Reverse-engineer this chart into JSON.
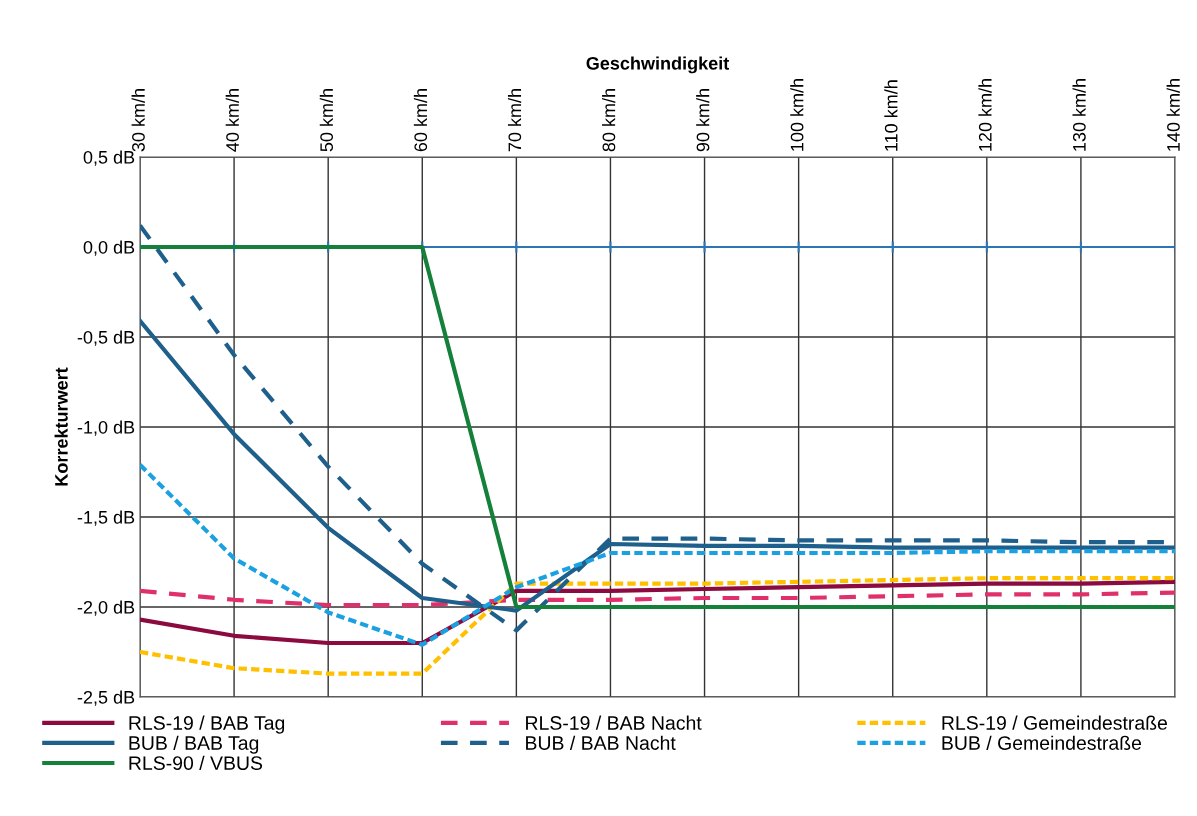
{
  "chart_data": {
    "type": "line",
    "xlabel": "Geschwindigkeit",
    "ylabel": "Korrekturwert",
    "categories": [
      "30 km/h",
      "40 km/h",
      "50 km/h",
      "60 km/h",
      "70 km/h",
      "80 km/h",
      "90 km/h",
      "100 km/h",
      "110 km/h",
      "120 km/h",
      "130 km/h",
      "140 km/h"
    ],
    "ylim": [
      -2.5,
      0.5
    ],
    "yticks": [
      {
        "value": -2.5,
        "label": "-2,5 dB"
      },
      {
        "value": -2.0,
        "label": "-2,0 dB"
      },
      {
        "value": -1.5,
        "label": "-1,5 dB"
      },
      {
        "value": -1.0,
        "label": "-1,0 dB"
      },
      {
        "value": -0.5,
        "label": "-0,5 dB"
      },
      {
        "value": 0.0,
        "label": "0,0 dB"
      },
      {
        "value": 0.5,
        "label": "0,5 dB"
      }
    ],
    "grid": true,
    "legend": "bottom",
    "marker": "none",
    "ref_lines": [
      {
        "axis": "y",
        "value": 0,
        "color": "#2e75b6"
      }
    ],
    "series": [
      {
        "name": "RLS-19 / BAB Tag",
        "color": "#8b0a3f",
        "line_style": "solid",
        "values": [
          -2.07,
          -2.16,
          -2.2,
          -2.2,
          -1.91,
          -1.91,
          -1.9,
          -1.89,
          -1.88,
          -1.87,
          -1.87,
          -1.86
        ]
      },
      {
        "name": "RLS-19 / BAB Nacht",
        "color": "#e0306a",
        "line_style": "dashed",
        "values": [
          -1.91,
          -1.96,
          -1.99,
          -1.99,
          -1.96,
          -1.96,
          -1.95,
          -1.95,
          -1.94,
          -1.93,
          -1.93,
          -1.92
        ]
      },
      {
        "name": "RLS-19 / Gemeindestraße",
        "color": "#ffc000",
        "line_style": "dotted",
        "values": [
          -2.25,
          -2.34,
          -2.37,
          -2.37,
          -1.87,
          -1.87,
          -1.87,
          -1.86,
          -1.85,
          -1.84,
          -1.84,
          -1.84
        ]
      },
      {
        "name": "BUB / BAB Tag",
        "color": "#1f5f8b",
        "line_style": "solid",
        "values": [
          -0.41,
          -1.04,
          -1.56,
          -1.95,
          -2.02,
          -1.65,
          -1.66,
          -1.66,
          -1.67,
          -1.67,
          -1.67,
          -1.67
        ]
      },
      {
        "name": "BUB / BAB Nacht",
        "color": "#1f5f8b",
        "line_style": "dashed",
        "values": [
          0.12,
          -0.6,
          -1.22,
          -1.76,
          -2.13,
          -1.62,
          -1.62,
          -1.63,
          -1.63,
          -1.63,
          -1.64,
          -1.64
        ]
      },
      {
        "name": "BUB / Gemeindestraße",
        "color": "#1ba1e2",
        "line_style": "dotted",
        "values": [
          -1.21,
          -1.73,
          -2.03,
          -2.21,
          -1.89,
          -1.7,
          -1.7,
          -1.7,
          -1.7,
          -1.69,
          -1.69,
          -1.69
        ]
      },
      {
        "name": "RLS-90 / VBUS",
        "color": "#15803a",
        "line_style": "solid",
        "values": [
          0,
          0,
          0,
          0,
          -2.0,
          -2.0,
          -2.0,
          -2.0,
          -2.0,
          -2.0,
          -2.0,
          -2.0
        ]
      }
    ]
  }
}
